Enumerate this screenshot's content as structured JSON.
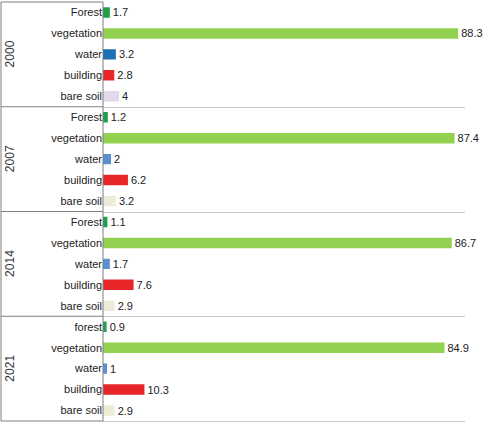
{
  "chart_data": [
    {
      "type": "bar",
      "title": "2000",
      "orientation": "horizontal",
      "data_labels": true,
      "tick_labels": "y",
      "categories": [
        "Forest",
        "vegetation",
        "water",
        "building",
        "bare soil"
      ],
      "values": [
        1.7,
        88.3,
        3.2,
        2.8,
        4
      ],
      "colors": [
        "#21a04a",
        "#92d050",
        "#1f6fb5",
        "#e8262a",
        "#e2d9ea"
      ],
      "xlim": [
        0,
        90
      ]
    },
    {
      "type": "bar",
      "title": "2007",
      "orientation": "horizontal",
      "data_labels": true,
      "tick_labels": "y",
      "categories": [
        "Forest",
        "vegetation",
        "water",
        "building",
        "bare soil"
      ],
      "values": [
        1.2,
        87.4,
        2,
        6.2,
        3.2
      ],
      "colors": [
        "#21a04a",
        "#92d050",
        "#5b8fd0",
        "#e8262a",
        "#ecedd9"
      ],
      "xlim": [
        0,
        90
      ]
    },
    {
      "type": "bar",
      "title": "2014",
      "orientation": "horizontal",
      "data_labels": true,
      "tick_labels": "y",
      "categories": [
        "Forest",
        "vegetation",
        "water",
        "building",
        "bare soil"
      ],
      "values": [
        1.1,
        86.7,
        1.7,
        7.6,
        2.9
      ],
      "colors": [
        "#21a04a",
        "#92d050",
        "#5b8fd0",
        "#e8262a",
        "#ecedd9"
      ],
      "xlim": [
        0,
        90
      ]
    },
    {
      "type": "bar",
      "title": "2021",
      "orientation": "horizontal",
      "data_labels": true,
      "tick_labels": "y",
      "categories": [
        "forest",
        "vegetation",
        "water",
        "building",
        "bare soil"
      ],
      "values": [
        0.9,
        84.9,
        1,
        10.3,
        2.9
      ],
      "colors": [
        "#21a04a",
        "#92d050",
        "#5b8fd0",
        "#e8262a",
        "#ecedd9"
      ],
      "xlim": [
        0,
        90
      ]
    }
  ]
}
